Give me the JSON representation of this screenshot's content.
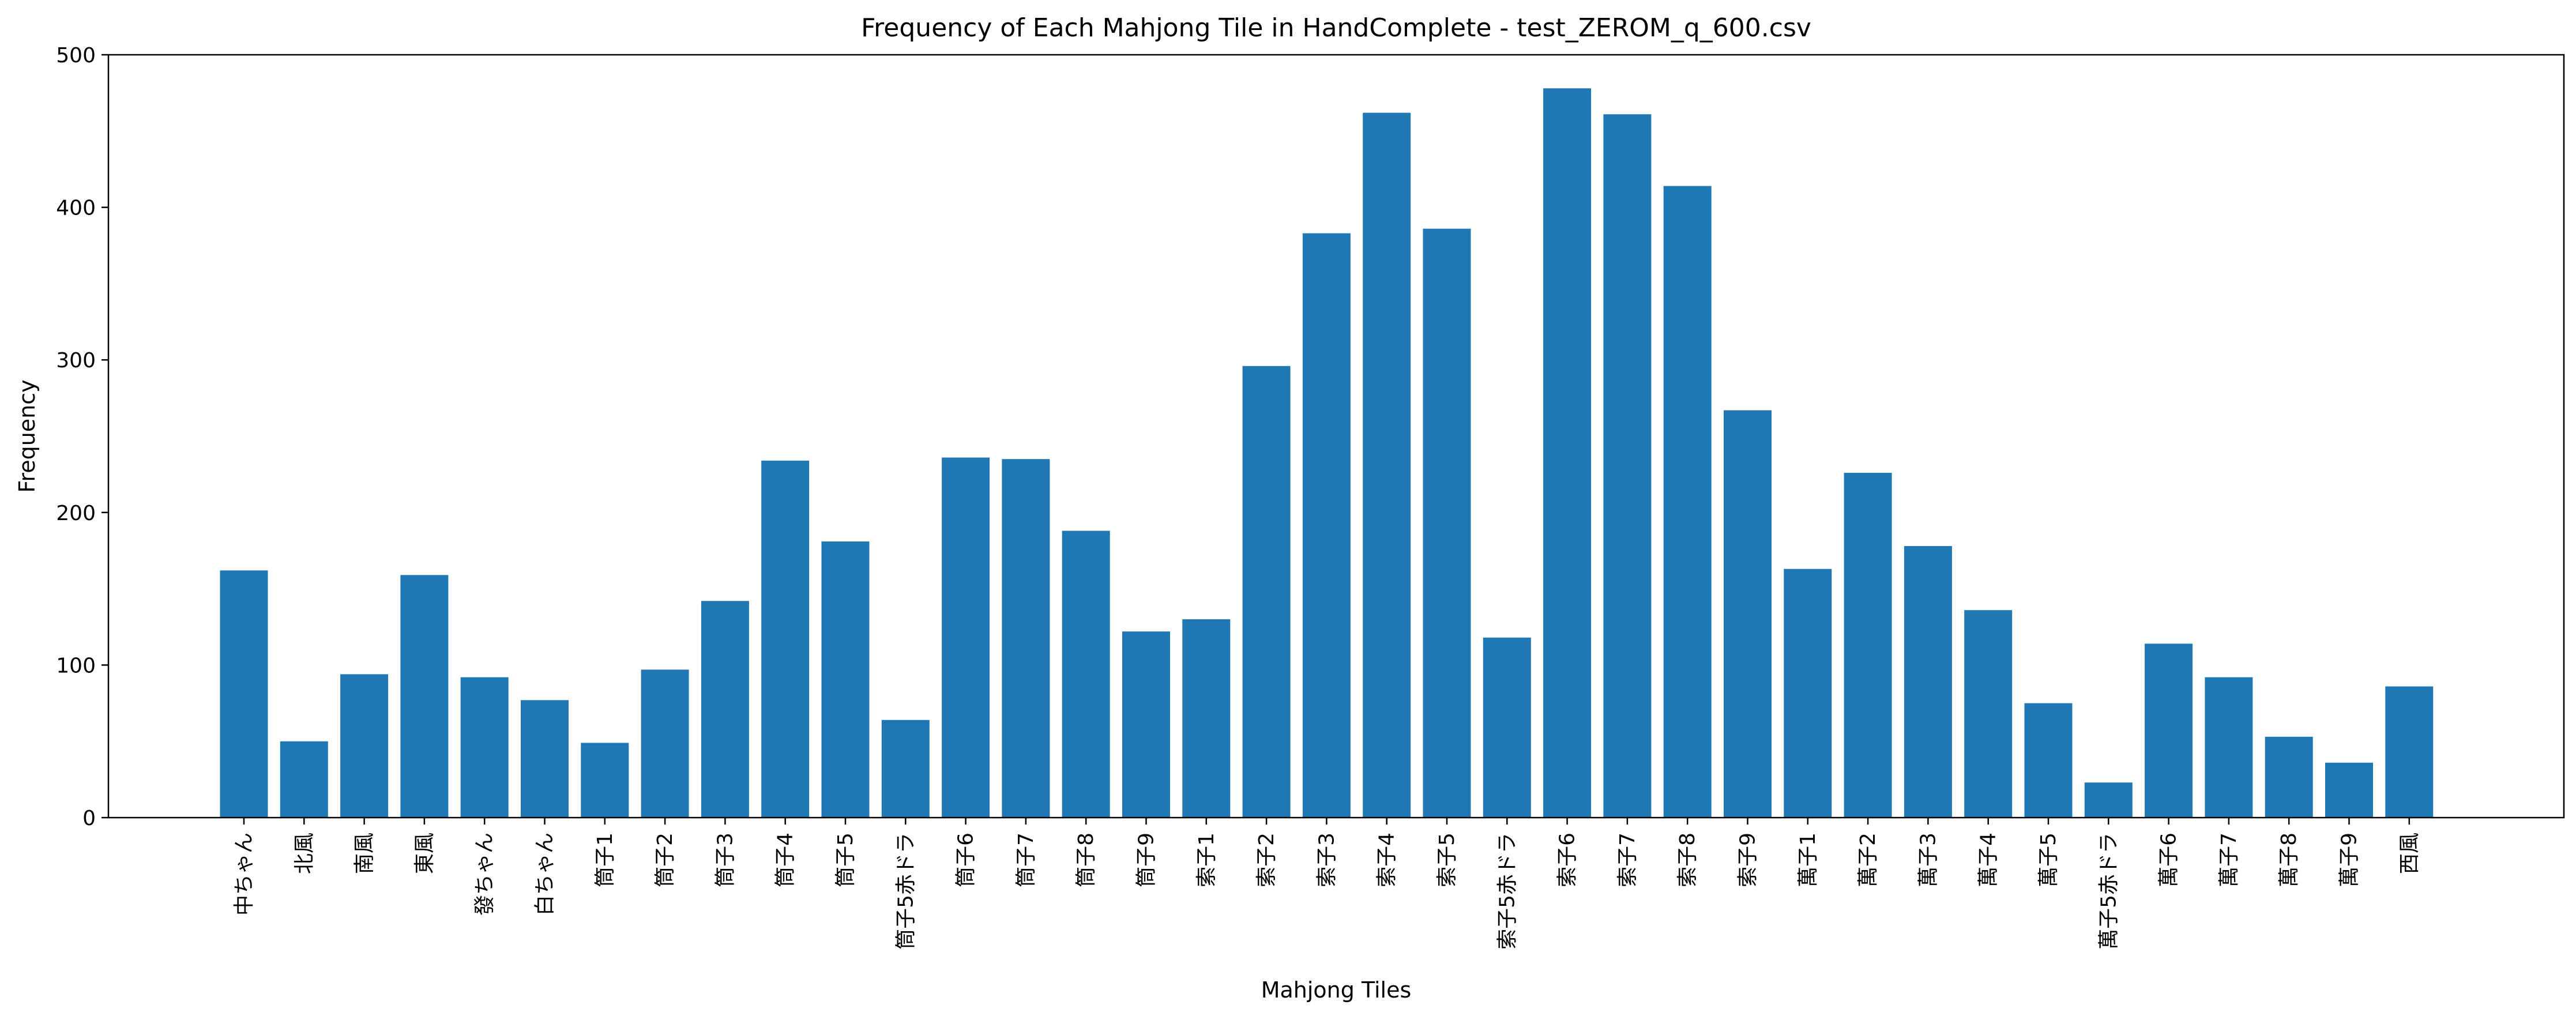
{
  "chart_data": {
    "type": "bar",
    "title": "Frequency of Each Mahjong Tile in HandComplete - test_ZEROM_q_600.csv",
    "xlabel": "Mahjong Tiles",
    "ylabel": "Frequency",
    "ylim": [
      0,
      500
    ],
    "yticks": [
      0,
      100,
      200,
      300,
      400,
      500
    ],
    "grid": false,
    "color": "#1f77b4",
    "categories": [
      "中ちゃん",
      "北風",
      "南風",
      "東風",
      "發ちゃん",
      "白ちゃん",
      "筒子1",
      "筒子2",
      "筒子3",
      "筒子4",
      "筒子5",
      "筒子5赤ドラ",
      "筒子6",
      "筒子7",
      "筒子8",
      "筒子9",
      "索子1",
      "索子2",
      "索子3",
      "索子4",
      "索子5",
      "索子5赤ドラ",
      "索子6",
      "索子7",
      "索子8",
      "索子9",
      "萬子1",
      "萬子2",
      "萬子3",
      "萬子4",
      "萬子5",
      "萬子5赤ドラ",
      "萬子6",
      "萬子7",
      "萬子8",
      "萬子9",
      "西風"
    ],
    "values": [
      162,
      50,
      94,
      159,
      92,
      77,
      49,
      97,
      142,
      234,
      181,
      64,
      236,
      235,
      188,
      122,
      130,
      296,
      383,
      462,
      386,
      118,
      478,
      461,
      414,
      267,
      163,
      226,
      178,
      136,
      75,
      23,
      114,
      92,
      53,
      36,
      86
    ]
  }
}
